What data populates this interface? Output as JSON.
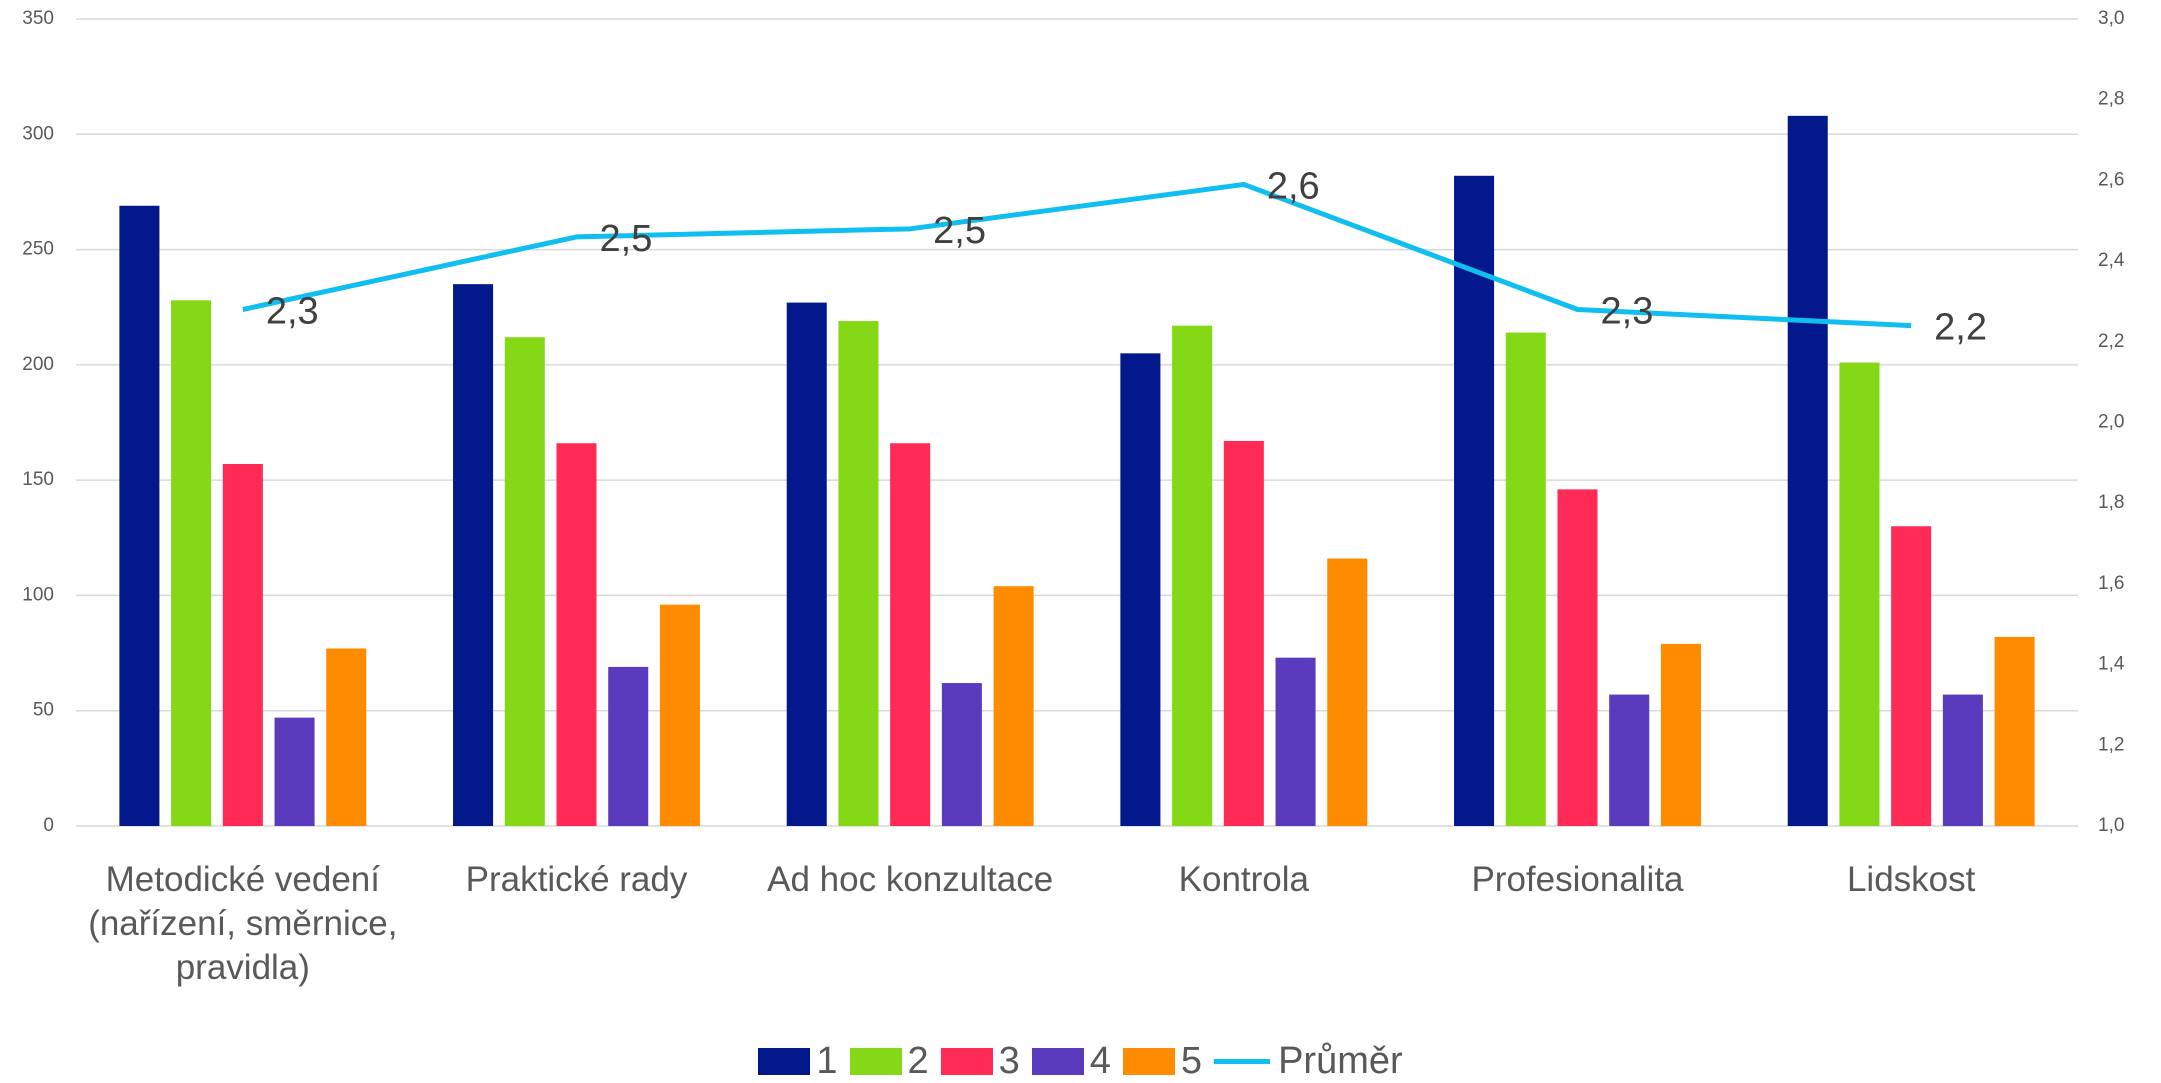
{
  "chart_data": {
    "type": "bar",
    "categories": [
      "Metodické vedení (nařízení, směrnice, pravidla)",
      "Praktické rady",
      "Ad hoc konzultace",
      "Kontrola",
      "Profesionalita",
      "Lidskost"
    ],
    "series": [
      {
        "name": "1",
        "color": "#03188a",
        "values": [
          269,
          235,
          227,
          205,
          282,
          308
        ]
      },
      {
        "name": "2",
        "color": "#84d816",
        "values": [
          228,
          212,
          219,
          217,
          214,
          201
        ]
      },
      {
        "name": "3",
        "color": "#ff2b56",
        "values": [
          157,
          166,
          166,
          167,
          146,
          130
        ]
      },
      {
        "name": "4",
        "color": "#5b3bbd",
        "values": [
          47,
          69,
          62,
          73,
          57,
          57
        ]
      },
      {
        "name": "5",
        "color": "#ff8c00",
        "values": [
          77,
          96,
          104,
          116,
          79,
          82
        ]
      },
      {
        "name": "Průměr",
        "color": "#10bff0",
        "type": "line",
        "axis": "y2",
        "values": [
          2.28,
          2.46,
          2.48,
          2.59,
          2.28,
          2.24
        ],
        "value_labels": [
          "2,3",
          "2,5",
          "2,5",
          "2,6",
          "2,3",
          "2,2"
        ]
      }
    ],
    "ylim": [
      0,
      350
    ],
    "yticks": [
      0,
      50,
      100,
      150,
      200,
      250,
      300,
      350
    ],
    "y2lim": [
      1,
      3
    ],
    "y2ticks": [
      {
        "value": 1,
        "label": "1,0"
      },
      {
        "value": 1.2,
        "label": "1,2"
      },
      {
        "value": 1.4,
        "label": "1,4"
      },
      {
        "value": 1.6,
        "label": "1,6"
      },
      {
        "value": 1.8,
        "label": "1,8"
      },
      {
        "value": 2,
        "label": "2,0"
      },
      {
        "value": 2.2,
        "label": "2,2"
      },
      {
        "value": 2.4,
        "label": "2,4"
      },
      {
        "value": 2.6,
        "label": "2,6"
      },
      {
        "value": 2.8,
        "label": "2,8"
      },
      {
        "value": 3,
        "label": "3,0"
      }
    ],
    "grid": true,
    "legend": "bottom"
  }
}
